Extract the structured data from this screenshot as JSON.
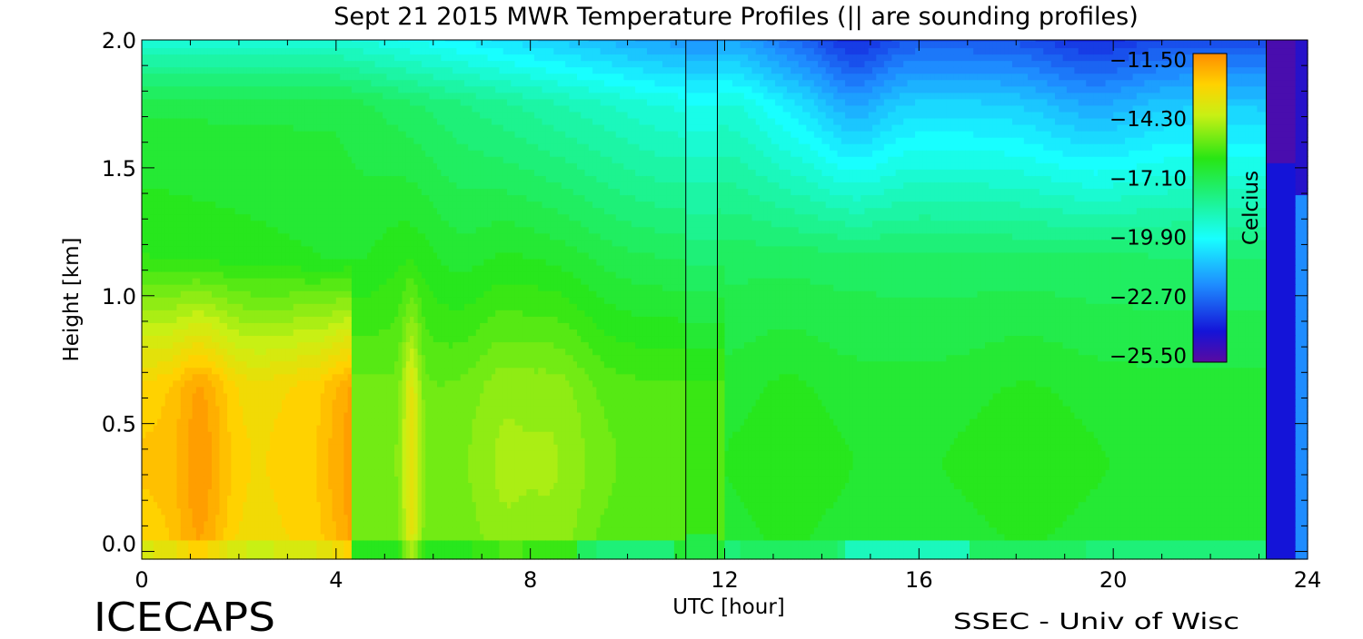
{
  "chart_data": {
    "type": "heatmap",
    "title": "Sept 21 2015 MWR Temperature Profiles (|| are sounding profiles)",
    "xlabel": "UTC [hour]",
    "ylabel": "Height [km]",
    "xlim": [
      0,
      24
    ],
    "ylim": [
      -0.03,
      2.0
    ],
    "xticks": [
      "0",
      "4",
      "8",
      "12",
      "16",
      "20",
      "24"
    ],
    "yticks": [
      "0.0",
      "0.5",
      "1.0",
      "1.5",
      "2.0"
    ],
    "colorbar": {
      "label": "Celcius",
      "ticks": [
        "-11.50",
        "-14.30",
        "-17.10",
        "-19.90",
        "-22.70",
        "-25.50"
      ],
      "range": [
        -25.5,
        -11.5
      ],
      "colormap": "rainbow (purple-blue-cyan-green-yellow-orange)"
    },
    "sounding_times_utc": [
      11.2,
      11.85
    ],
    "no_data_intervals": [
      [
        11.2,
        11.85
      ],
      [
        23.15,
        23.75
      ]
    ],
    "footer_left": "ICECAPS",
    "footer_right": "SSEC - Univ of Wisc"
  }
}
